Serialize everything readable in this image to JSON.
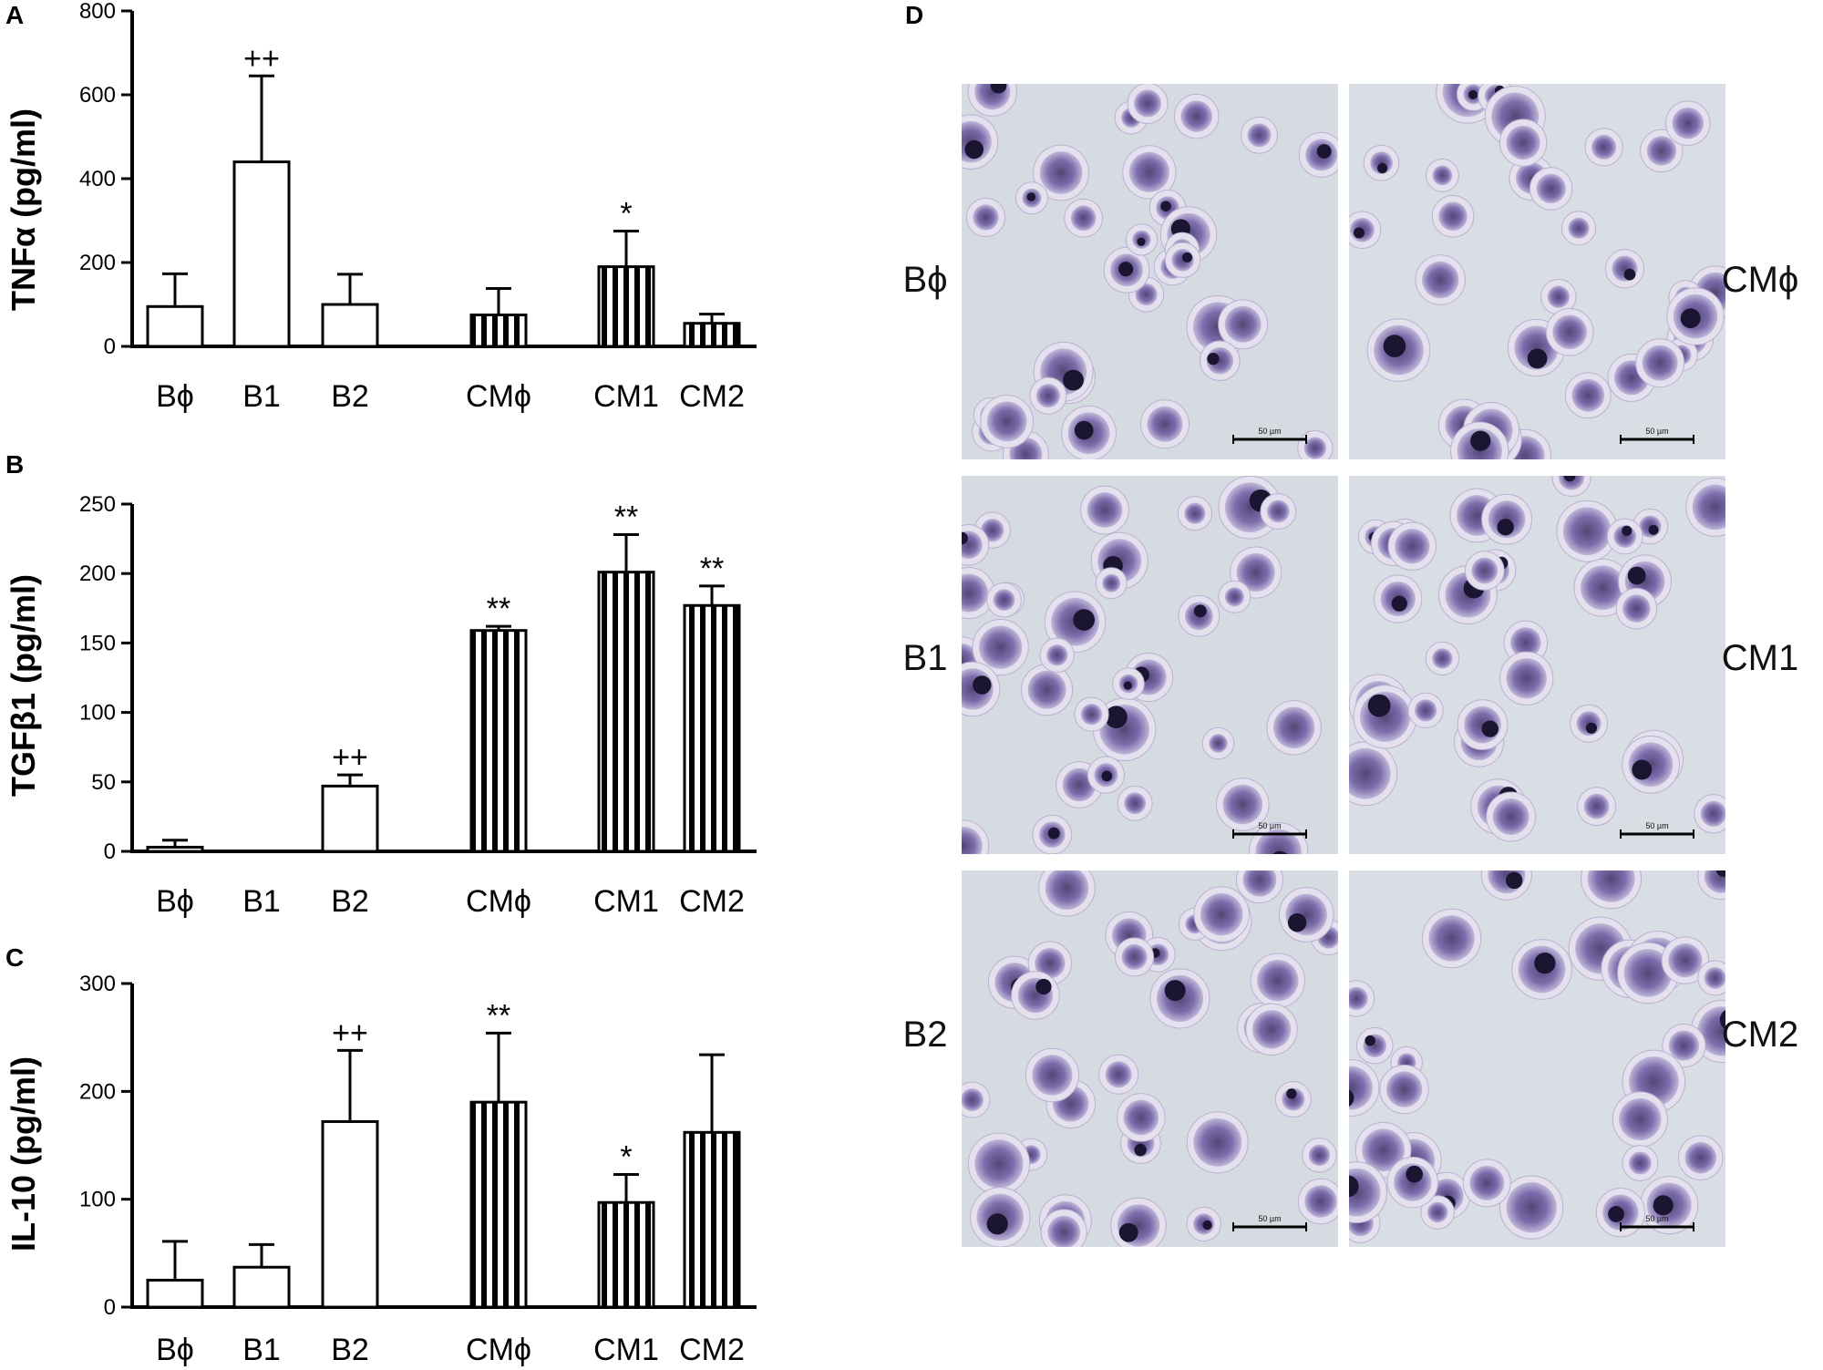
{
  "chart_data": [
    {
      "panel": "A",
      "type": "bar",
      "ylabel": "TNFα (pg/ml)",
      "ylim": [
        0,
        800
      ],
      "yticks": [
        0,
        200,
        400,
        600,
        800
      ],
      "categories": [
        "Bϕ",
        "B1",
        "B2",
        "CMϕ",
        "CM1",
        "CM2"
      ],
      "values": [
        95,
        440,
        100,
        75,
        190,
        55
      ],
      "errors": [
        78,
        205,
        72,
        63,
        85,
        22
      ],
      "bar_fill": [
        "open",
        "open",
        "open",
        "striped",
        "striped",
        "striped"
      ],
      "significance": [
        "",
        "++",
        "",
        "",
        "*",
        ""
      ]
    },
    {
      "panel": "B",
      "type": "bar",
      "ylabel": "TGFβ1 (pg/ml)",
      "ylim": [
        0,
        250
      ],
      "yticks": [
        0,
        50,
        100,
        150,
        200,
        250
      ],
      "categories": [
        "Bϕ",
        "B1",
        "B2",
        "CMϕ",
        "CM1",
        "CM2"
      ],
      "values": [
        3,
        0,
        47,
        159,
        201,
        177
      ],
      "errors": [
        5,
        0,
        8,
        3,
        27,
        14
      ],
      "bar_fill": [
        "open",
        "open",
        "open",
        "striped",
        "striped",
        "striped"
      ],
      "significance": [
        "",
        "",
        "++",
        "**",
        "**",
        "**"
      ]
    },
    {
      "panel": "C",
      "type": "bar",
      "ylabel": "IL-10 (pg/ml)",
      "ylim": [
        0,
        300
      ],
      "yticks": [
        0,
        100,
        200,
        300
      ],
      "categories": [
        "Bϕ",
        "B1",
        "B2",
        "CMϕ",
        "CM1",
        "CM2"
      ],
      "values": [
        25,
        37,
        172,
        190,
        97,
        162
      ],
      "errors": [
        36,
        21,
        66,
        64,
        26,
        72
      ],
      "bar_fill": [
        "open",
        "open",
        "open",
        "striped",
        "striped",
        "striped"
      ],
      "significance": [
        "",
        "",
        "++",
        "**",
        "*",
        ""
      ]
    }
  ],
  "micrographs": {
    "panel": "D",
    "left_labels": [
      "Bϕ",
      "B1",
      "B2"
    ],
    "right_labels": [
      "CMϕ",
      "CM1",
      "CM2"
    ],
    "scale_bar_text": "50 µm"
  }
}
